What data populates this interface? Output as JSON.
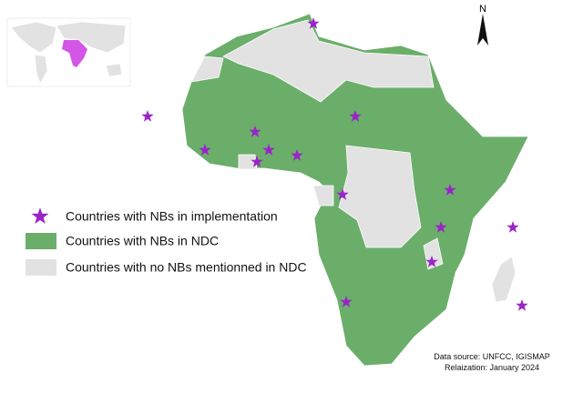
{
  "legend": {
    "items": [
      {
        "label": "Countries with NBs in implementation"
      },
      {
        "label": "Countries with NBs in NDC"
      },
      {
        "label": "Countries with no NBs mentionned in NDC"
      }
    ]
  },
  "north_arrow": {
    "label": "N"
  },
  "source": {
    "lines": [
      "Data source: UNFCC, IGISMAP",
      "Relaization: January 2024"
    ]
  }
}
